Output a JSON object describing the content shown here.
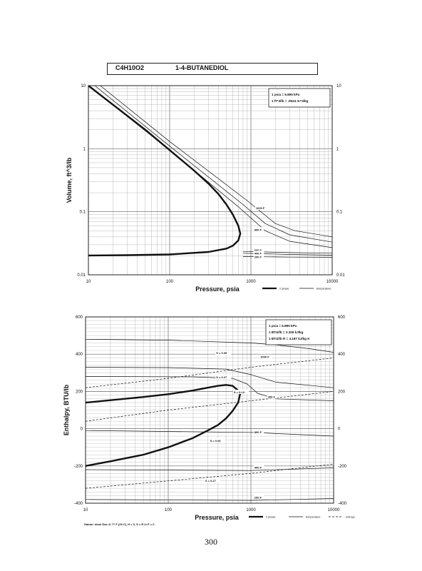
{
  "page": {
    "formula": "C4H10O2",
    "compound": "1-4-BUTANEDIOL",
    "page_number": "300",
    "footnote": "Datum: Ideal Gas @ 77 F (25 C), H = 0, S = R ln P = 0"
  },
  "chart_data": [
    {
      "type": "line",
      "x_scale": "log",
      "y_scale": "log",
      "xlim": [
        10,
        10000
      ],
      "ylim": [
        0.01,
        10
      ],
      "xlabel": "Pressure, psia",
      "ylabel": "Volume, ft^3/lb",
      "xticks": [
        "10",
        "100",
        "1000",
        "10000"
      ],
      "yticks_left": [
        "0.01",
        "0.1",
        "1",
        "10"
      ],
      "yticks_right": [
        "0.01",
        "0.1",
        "1",
        "10"
      ],
      "grid": true,
      "conversion_notes": [
        "1 psia = 6.895 kPa",
        "1 ft^3/lb = .0624 m^3/kg"
      ],
      "legend": [
        {
          "name": "2 phase",
          "style": "thick"
        },
        {
          "name": "temperature",
          "style": "thin"
        }
      ],
      "series": [
        {
          "name": "2 phase",
          "style": "thick",
          "x": [
            10,
            20,
            50,
            100,
            200,
            300,
            400,
            500,
            600,
            700,
            740,
            700,
            600,
            500,
            300,
            100,
            30,
            10
          ],
          "y": [
            10,
            5,
            2,
            0.95,
            0.45,
            0.28,
            0.19,
            0.13,
            0.09,
            0.06,
            0.045,
            0.035,
            0.029,
            0.026,
            0.023,
            0.021,
            0.0205,
            0.0202
          ]
        },
        {
          "name": "",
          "style": "thin",
          "x": [
            10,
            100,
            700,
            1500,
            3000,
            10000
          ],
          "y": [
            10,
            0.95,
            0.12,
            0.05,
            0.034,
            0.027
          ]
        },
        {
          "name": "",
          "style": "thin",
          "x": [
            12,
            100,
            800,
            1500,
            3000,
            10000
          ],
          "y": [
            10,
            1.1,
            0.13,
            0.065,
            0.043,
            0.033
          ]
        },
        {
          "name": "",
          "style": "thin",
          "x": [
            14,
            100,
            900,
            2000,
            3500,
            10000
          ],
          "y": [
            10,
            1.3,
            0.15,
            0.065,
            0.05,
            0.04
          ]
        },
        {
          "name": "",
          "style": "thin",
          "x": [
            800,
            1500,
            3000,
            10000
          ],
          "y": [
            0.022,
            0.0215,
            0.021,
            0.0205
          ]
        },
        {
          "name": "",
          "style": "thin",
          "x": [
            800,
            1500,
            3000,
            10000
          ],
          "y": [
            0.0235,
            0.023,
            0.0225,
            0.022
          ]
        },
        {
          "name": "",
          "style": "thin",
          "x": [
            800,
            1500,
            3000,
            10000
          ],
          "y": [
            0.0195,
            0.0193,
            0.0191,
            0.019
          ]
        }
      ],
      "annotations": [
        {
          "text": "1000 F",
          "x": 1150,
          "y": 0.11
        },
        {
          "text": "800 F",
          "x": 1100,
          "y": 0.05
        },
        {
          "text": "600 F",
          "x": 1100,
          "y": 0.0235
        },
        {
          "text": "400 F",
          "x": 1100,
          "y": 0.021
        },
        {
          "text": "200 F",
          "x": 1100,
          "y": 0.0185
        }
      ]
    },
    {
      "type": "line",
      "x_scale": "log",
      "xlim": [
        10,
        10000
      ],
      "ylim": [
        -400,
        600
      ],
      "xlabel": "Pressure, psia",
      "ylabel": "Enthalpy, BTU/lb",
      "xticks": [
        "10",
        "100",
        "1000",
        "10000"
      ],
      "yticks_left": [
        "-400",
        "-200",
        "0",
        "200",
        "400",
        "600"
      ],
      "yticks_right": [
        "-400",
        "-200",
        "0",
        "200",
        "400",
        "600"
      ],
      "grid": true,
      "conversion_notes": [
        "1 psia = 6.895 kPa",
        "1 BTU/lb = 2.326 kJ/kg",
        "1 BTU/lb R = 4.187 kJ/kg K"
      ],
      "legend": [
        {
          "name": "2 phase",
          "style": "thick"
        },
        {
          "name": "temperature",
          "style": "thin"
        },
        {
          "name": "entropy",
          "style": "dashed"
        }
      ],
      "series": [
        {
          "name": "2 phase",
          "style": "thick",
          "x": [
            10,
            50,
            100,
            200,
            300,
            400,
            500,
            600,
            700,
            740,
            700,
            600,
            500,
            400,
            300,
            200,
            100,
            50,
            20,
            10
          ],
          "y": [
            140,
            170,
            185,
            205,
            220,
            230,
            235,
            230,
            205,
            185,
            140,
            95,
            55,
            20,
            -10,
            -50,
            -100,
            -140,
            -175,
            -200
          ]
        },
        {
          "name": "",
          "style": "thin",
          "x": [
            10,
            100,
            1000,
            2000,
            5000,
            10000
          ],
          "y": [
            480,
            475,
            460,
            450,
            430,
            410
          ]
        },
        {
          "name": "",
          "style": "thin",
          "x": [
            10,
            100,
            500,
            1000,
            2000,
            10000
          ],
          "y": [
            330,
            328,
            320,
            290,
            250,
            220
          ]
        },
        {
          "name": "",
          "style": "thin",
          "x": [
            10,
            200,
            600,
            900,
            1200,
            2000,
            10000
          ],
          "y": [
            280,
            278,
            270,
            240,
            190,
            160,
            150
          ]
        },
        {
          "name": "",
          "style": "thin",
          "x": [
            10,
            1000,
            10000
          ],
          "y": [
            -10,
            -20,
            -40
          ]
        },
        {
          "name": "",
          "style": "thin",
          "x": [
            10,
            1000,
            10000
          ],
          "y": [
            -220,
            -225,
            -210
          ]
        },
        {
          "name": "",
          "style": "thin",
          "x": [
            10,
            1000,
            10000
          ],
          "y": [
            -380,
            -385,
            -375
          ]
        },
        {
          "name": "",
          "style": "dashed",
          "x": [
            10,
            100,
            1000,
            10000
          ],
          "y": [
            220,
            270,
            330,
            380
          ]
        },
        {
          "name": "",
          "style": "dashed",
          "x": [
            10,
            100,
            1000,
            10000
          ],
          "y": [
            40,
            100,
            150,
            200
          ]
        },
        {
          "name": "",
          "style": "dashed",
          "x": [
            10,
            100,
            1000,
            10000
          ],
          "y": [
            -320,
            -280,
            -240,
            -190
          ]
        }
      ],
      "annotations": [
        {
          "text": "S = 0.35",
          "x": 380,
          "y": 400
        },
        {
          "text": "S = 0.27",
          "x": 380,
          "y": 270
        },
        {
          "text": "S = 0.19",
          "x": 620,
          "y": 190
        },
        {
          "text": "1000 F",
          "x": 1300,
          "y": 380
        },
        {
          "text": "300 F",
          "x": 1600,
          "y": 165
        },
        {
          "text": "800 F",
          "x": 1100,
          "y": -25
        },
        {
          "text": "S = 0.06",
          "x": 320,
          "y": -70
        },
        {
          "text": "400 F",
          "x": 1100,
          "y": -215
        },
        {
          "text": "S = 0.27",
          "x": 280,
          "y": -285
        },
        {
          "text": "200 F",
          "x": 1100,
          "y": -375
        }
      ]
    }
  ]
}
